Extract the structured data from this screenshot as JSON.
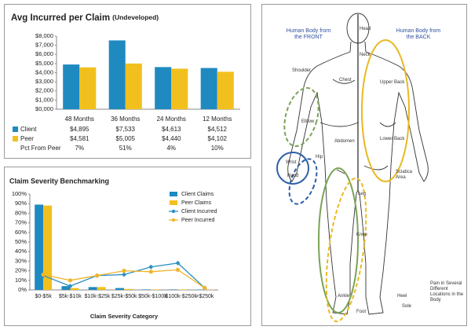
{
  "chart_data": [
    {
      "type": "bar",
      "title": "Avg Incurred per Claim",
      "subtitle": "(Undeveloped)",
      "categories": [
        "48 Months",
        "36 Months",
        "24 Months",
        "12 Months"
      ],
      "series": [
        {
          "name": "Client",
          "color": "#1f8ac0",
          "values": [
            4895,
            7533,
            4613,
            4512
          ],
          "value_labels": [
            "$4,895",
            "$7,533",
            "$4,613",
            "$4,512"
          ]
        },
        {
          "name": "Peer",
          "color": "#f2c01e",
          "values": [
            4581,
            5005,
            4440,
            4102
          ],
          "value_labels": [
            "$4,581",
            "$5,005",
            "$4,440",
            "$4,102"
          ]
        }
      ],
      "table": {
        "name": "Pct From Peer",
        "values": [
          "7%",
          "51%",
          "4%",
          "10%"
        ]
      },
      "ylim": [
        0,
        8000
      ],
      "yticks": [
        {
          "value": 0,
          "label": "$0,000"
        },
        {
          "value": 1000,
          "label": "$1,000"
        },
        {
          "value": 2000,
          "label": "$2,000"
        },
        {
          "value": 3000,
          "label": "$3,000"
        },
        {
          "value": 4000,
          "label": "$4,000"
        },
        {
          "value": 5000,
          "label": "$5,000"
        },
        {
          "value": 6000,
          "label": "$6,000"
        },
        {
          "value": 7000,
          "label": "$7,000"
        },
        {
          "value": 8000,
          "label": "$8,000"
        }
      ],
      "grid": false
    },
    {
      "type": "bar",
      "title": "Claim Severity Benchmarking",
      "x_label": "Claim Severity Category",
      "categories": [
        "$0-$5k",
        "$5k-$10k",
        "$10k-$25k",
        "$25k-$50k",
        "$50k-$100k",
        "$100k-$250k",
        ">$250k"
      ],
      "series": [
        {
          "name": "Client Claims",
          "type": "bar",
          "color": "#1f8ac0",
          "values": [
            89,
            4,
            3,
            2,
            0.5,
            0.5,
            0.3
          ]
        },
        {
          "name": "Peer Claims",
          "type": "bar",
          "color": "#f2c01e",
          "values": [
            88,
            2,
            3,
            1,
            0.5,
            0.5,
            0.3
          ]
        },
        {
          "name": "Client Incurred",
          "type": "line",
          "color": "#2a8fc4",
          "marker": "diamond",
          "values": [
            15,
            4,
            15,
            16,
            24,
            28,
            2
          ]
        },
        {
          "name": "Peer Incurred",
          "type": "line",
          "color": "#f0b429",
          "marker": "circle",
          "values": [
            16,
            10,
            15,
            20,
            19,
            21,
            2
          ]
        }
      ],
      "ylim": [
        0,
        100
      ],
      "yticks": [
        {
          "value": 0,
          "label": "0%"
        },
        {
          "value": 10,
          "label": "10%"
        },
        {
          "value": 20,
          "label": "20%"
        },
        {
          "value": 30,
          "label": "30%"
        },
        {
          "value": 40,
          "label": "40%"
        },
        {
          "value": 50,
          "label": "50%"
        },
        {
          "value": 60,
          "label": "60%"
        },
        {
          "value": 70,
          "label": "70%"
        },
        {
          "value": 80,
          "label": "80%"
        },
        {
          "value": 90,
          "label": "90%"
        },
        {
          "value": 100,
          "label": "100%"
        }
      ],
      "legend": "upper right",
      "grid": false
    }
  ],
  "diagram": {
    "titles": [
      "Human Body from the FRONT",
      "Human Body from the BACK"
    ],
    "labels": [
      "Head",
      "Neck",
      "Shoulder",
      "Chest",
      "Upper Back",
      "Elbow",
      "Abdomen",
      "Lower Back",
      "Hip",
      "Wrist",
      "Hand",
      "Sciatica Area",
      "Leg",
      "Knee",
      "Ankle",
      "Foot",
      "Heel",
      "Sole"
    ],
    "note": "Pain in Several Different Locations in the Body"
  }
}
